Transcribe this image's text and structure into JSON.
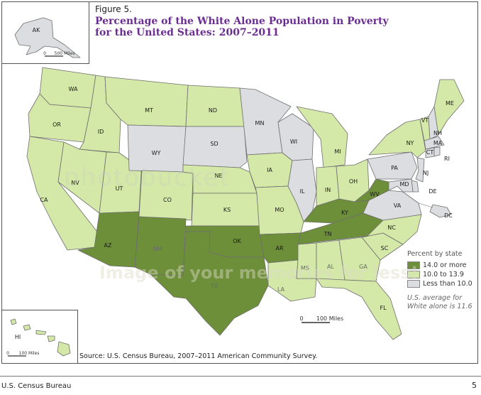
{
  "figure_label": "Figure 5.",
  "title": "Percentage of the White Alone Population in Poverty for the United States: 2007–2011",
  "source": "Source: U.S. Census Bureau, 2007–2011 American Community Survey.",
  "footer": {
    "left": "U.S. Census Bureau",
    "page": "5"
  },
  "legend": {
    "heading": "Percent by state",
    "items": [
      {
        "label": "14.0 or more",
        "color": "#6d8f3a"
      },
      {
        "label": "10.0 to 13.9",
        "color": "#d4e8a8"
      },
      {
        "label": "Less than 10.0",
        "color": "#dcdde0"
      }
    ],
    "note": "U.S. average for White alone is 11.6"
  },
  "scale_bars": {
    "main": "100 Miles",
    "alaska": "500 Miles",
    "hawaii": "100 Miles",
    "zero": "0"
  },
  "watermark": {
    "brand": "photobucket",
    "tagline": "Image of your memories for less!"
  },
  "colors": {
    "high": "#6d8f3a",
    "mid": "#d4e8a8",
    "low": "#dcdde0",
    "title": "#6b2d91"
  },
  "states": [
    {
      "abbr": "WA",
      "class": "mid"
    },
    {
      "abbr": "OR",
      "class": "mid"
    },
    {
      "abbr": "CA",
      "class": "mid"
    },
    {
      "abbr": "ID",
      "class": "mid"
    },
    {
      "abbr": "NV",
      "class": "mid"
    },
    {
      "abbr": "UT",
      "class": "mid"
    },
    {
      "abbr": "AZ",
      "class": "high"
    },
    {
      "abbr": "MT",
      "class": "mid"
    },
    {
      "abbr": "WY",
      "class": "low"
    },
    {
      "abbr": "CO",
      "class": "mid"
    },
    {
      "abbr": "NM",
      "class": "high"
    },
    {
      "abbr": "ND",
      "class": "mid"
    },
    {
      "abbr": "SD",
      "class": "low"
    },
    {
      "abbr": "NE",
      "class": "mid"
    },
    {
      "abbr": "KS",
      "class": "mid"
    },
    {
      "abbr": "OK",
      "class": "high"
    },
    {
      "abbr": "TX",
      "class": "high"
    },
    {
      "abbr": "MN",
      "class": "low"
    },
    {
      "abbr": "IA",
      "class": "mid"
    },
    {
      "abbr": "MO",
      "class": "mid"
    },
    {
      "abbr": "AR",
      "class": "high"
    },
    {
      "abbr": "LA",
      "class": "mid"
    },
    {
      "abbr": "WI",
      "class": "low"
    },
    {
      "abbr": "IL",
      "class": "low"
    },
    {
      "abbr": "MI",
      "class": "mid"
    },
    {
      "abbr": "IN",
      "class": "mid"
    },
    {
      "abbr": "OH",
      "class": "mid"
    },
    {
      "abbr": "KY",
      "class": "high"
    },
    {
      "abbr": "TN",
      "class": "high"
    },
    {
      "abbr": "MS",
      "class": "mid"
    },
    {
      "abbr": "AL",
      "class": "mid"
    },
    {
      "abbr": "GA",
      "class": "mid"
    },
    {
      "abbr": "FL",
      "class": "mid"
    },
    {
      "abbr": "SC",
      "class": "mid"
    },
    {
      "abbr": "NC",
      "class": "mid"
    },
    {
      "abbr": "VA",
      "class": "low"
    },
    {
      "abbr": "WV",
      "class": "high"
    },
    {
      "abbr": "PA",
      "class": "low"
    },
    {
      "abbr": "NY",
      "class": "mid"
    },
    {
      "abbr": "VT",
      "class": "mid"
    },
    {
      "abbr": "NH",
      "class": "low"
    },
    {
      "abbr": "ME",
      "class": "mid"
    },
    {
      "abbr": "MA",
      "class": "low"
    },
    {
      "abbr": "CT",
      "class": "low"
    },
    {
      "abbr": "RI",
      "class": "low"
    },
    {
      "abbr": "NJ",
      "class": "low"
    },
    {
      "abbr": "DE",
      "class": "low"
    },
    {
      "abbr": "MD",
      "class": "low"
    },
    {
      "abbr": "DC",
      "class": "low"
    },
    {
      "abbr": "AK",
      "class": "low"
    },
    {
      "abbr": "HI",
      "class": "mid"
    }
  ]
}
